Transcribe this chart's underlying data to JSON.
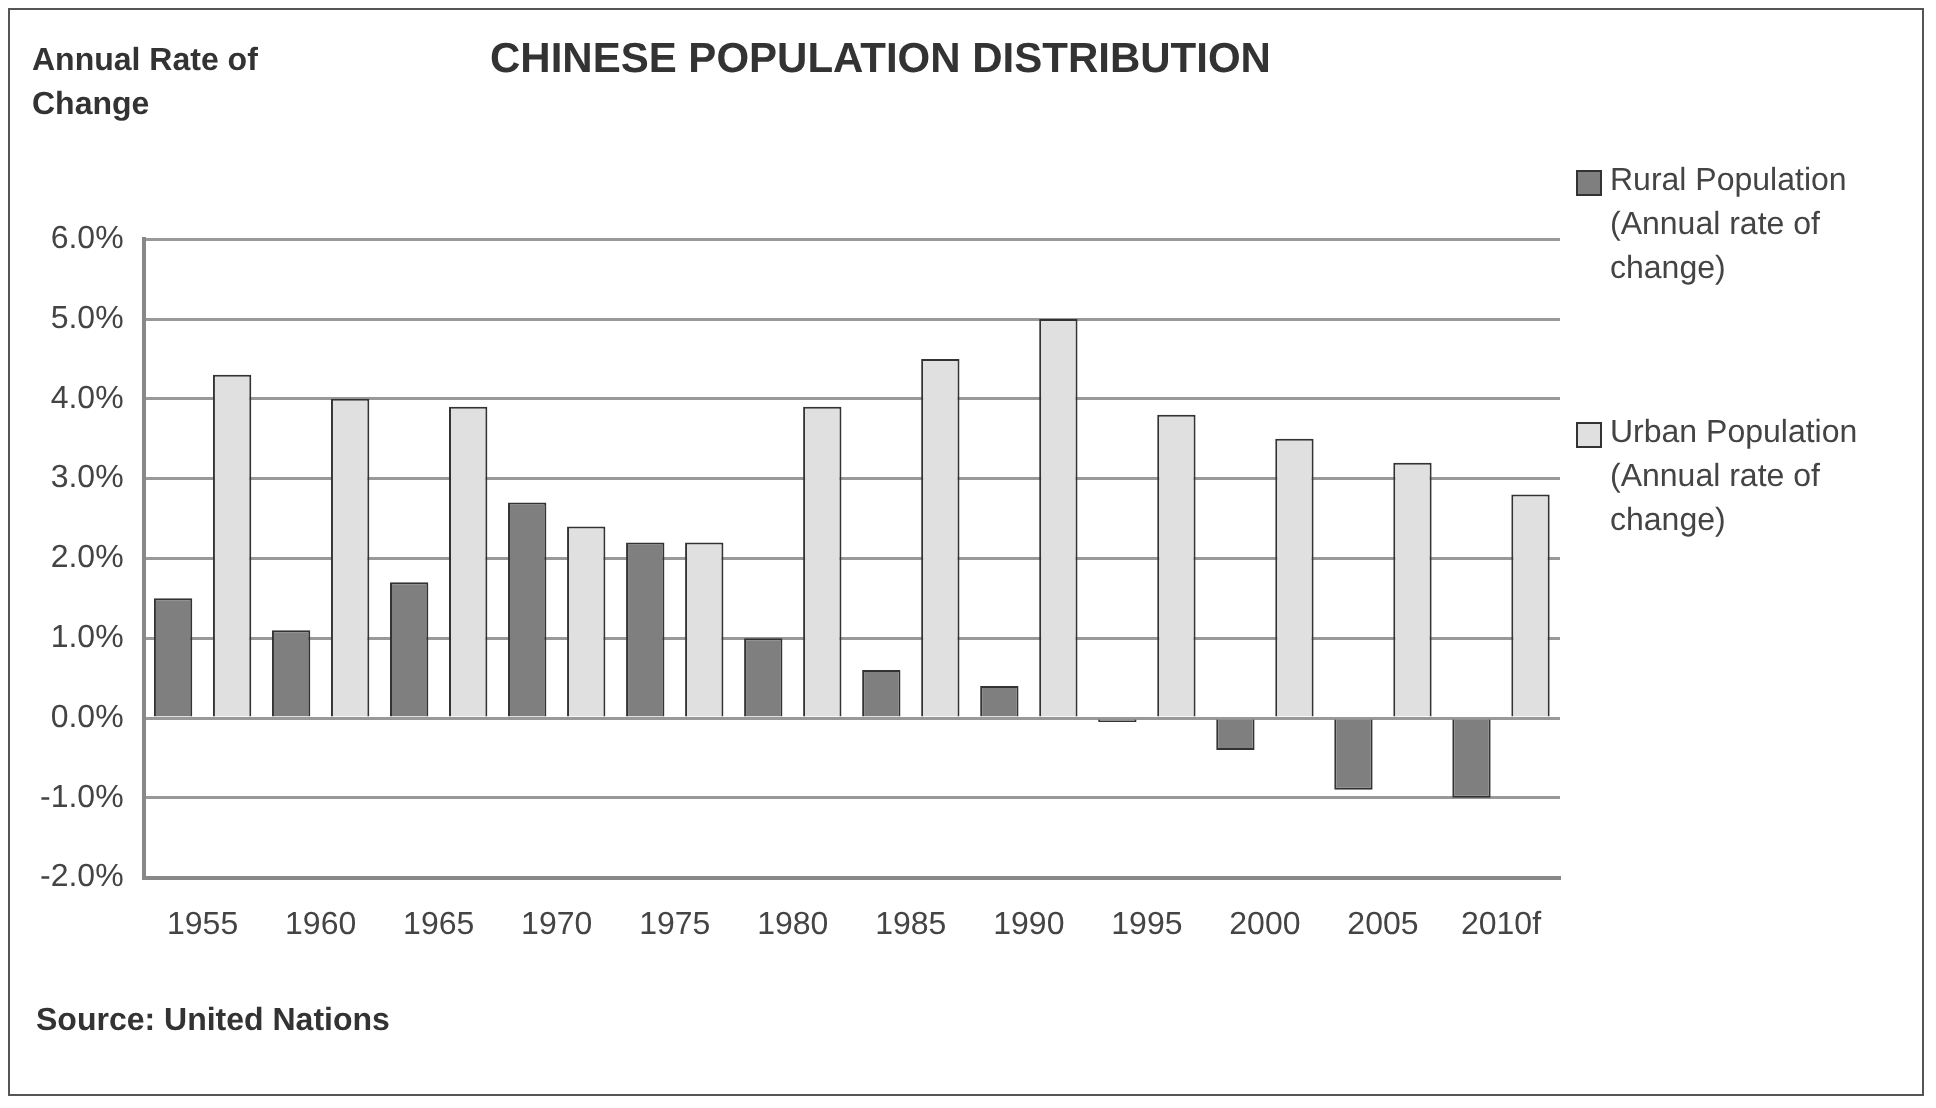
{
  "chart_data": {
    "type": "bar",
    "title": "CHINESE POPULATION DISTRIBUTION",
    "ylabel": "Annual Rate of Change",
    "categories": [
      "1955",
      "1960",
      "1965",
      "1970",
      "1975",
      "1980",
      "1985",
      "1990",
      "1995",
      "2000",
      "2005",
      "2010f"
    ],
    "series": [
      {
        "name": "Rural Population (Annual rate of change)",
        "color": "#7f7f7f",
        "values": [
          1.5,
          1.1,
          1.7,
          2.7,
          2.2,
          1.0,
          0.6,
          0.4,
          -0.05,
          -0.4,
          -0.9,
          -1.0
        ]
      },
      {
        "name": "Urban Population (Annual rate of change)",
        "color": "#e0e0e0",
        "values": [
          4.3,
          4.0,
          3.9,
          2.4,
          2.2,
          3.9,
          4.5,
          5.0,
          3.8,
          3.5,
          3.2,
          2.8
        ]
      }
    ],
    "ylim": [
      -2,
      6
    ],
    "yticks": [
      {
        "value": -2,
        "label": "-2.0%"
      },
      {
        "value": -1,
        "label": "-1.0%"
      },
      {
        "value": 0,
        "label": "0.0%"
      },
      {
        "value": 1,
        "label": "1.0%"
      },
      {
        "value": 2,
        "label": "2.0%"
      },
      {
        "value": 3,
        "label": "3.0%"
      },
      {
        "value": 4,
        "label": "4.0%"
      },
      {
        "value": 5,
        "label": "5.0%"
      },
      {
        "value": 6,
        "label": "6.0%"
      }
    ],
    "grid": "y",
    "legend": "right",
    "annotations": [
      "Source: United Nations"
    ]
  }
}
